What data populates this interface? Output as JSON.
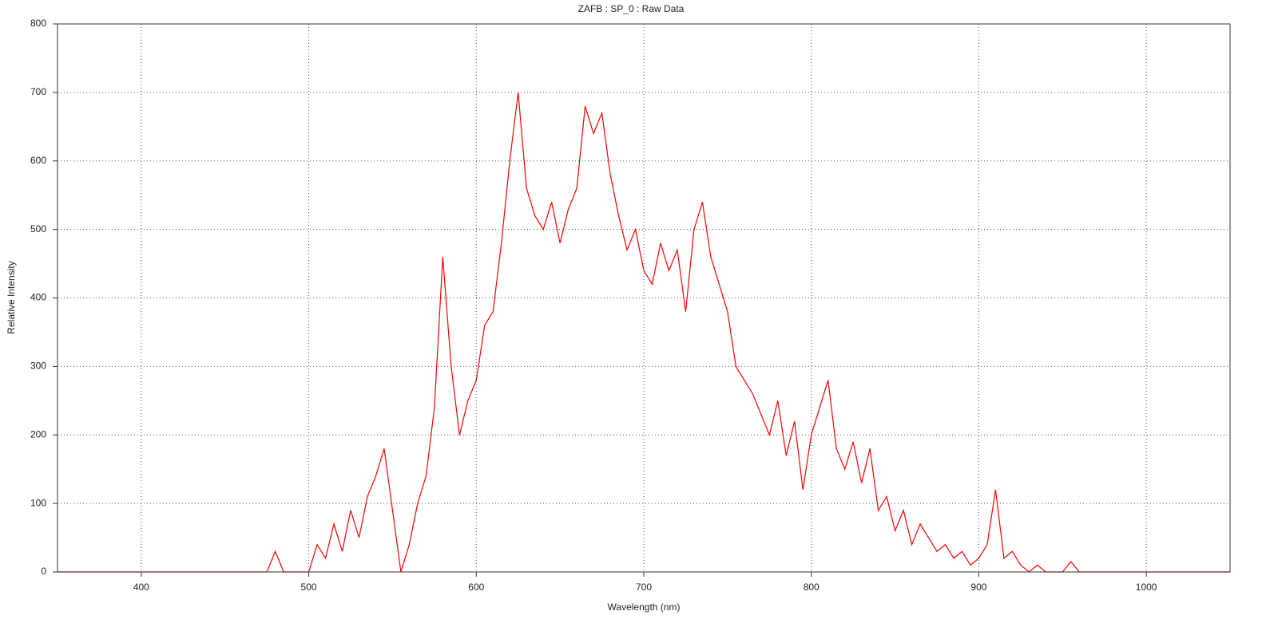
{
  "chart_data": {
    "type": "line",
    "title": "ZAFB : SP_0 : Raw Data",
    "x_label": "Wavelength (nm)",
    "y_label": "Relative Intensity",
    "x": [
      350,
      355,
      360,
      365,
      370,
      375,
      380,
      385,
      390,
      395,
      400,
      405,
      410,
      415,
      420,
      425,
      430,
      435,
      440,
      445,
      450,
      455,
      460,
      465,
      470,
      475,
      480,
      485,
      490,
      495,
      500,
      505,
      510,
      515,
      520,
      525,
      530,
      535,
      540,
      545,
      550,
      555,
      560,
      565,
      570,
      575,
      580,
      585,
      590,
      595,
      600,
      605,
      610,
      615,
      620,
      625,
      630,
      635,
      640,
      645,
      650,
      655,
      660,
      665,
      670,
      675,
      680,
      685,
      690,
      695,
      700,
      705,
      710,
      715,
      720,
      725,
      730,
      735,
      740,
      745,
      750,
      755,
      760,
      765,
      770,
      775,
      780,
      785,
      790,
      795,
      800,
      805,
      810,
      815,
      820,
      825,
      830,
      835,
      840,
      845,
      850,
      855,
      860,
      865,
      870,
      875,
      880,
      885,
      890,
      895,
      900,
      905,
      910,
      915,
      920,
      925,
      930,
      935,
      940,
      945,
      950,
      955,
      960,
      965,
      970,
      975,
      980,
      985,
      990,
      995,
      1000,
      1005,
      1010,
      1015,
      1020,
      1025,
      1030,
      1035,
      1040,
      1045,
      1050
    ],
    "series": [
      {
        "name": "Raw Data",
        "color": "#ff0000",
        "values": [
          0,
          0,
          0,
          0,
          0,
          0,
          0,
          0,
          0,
          0,
          0,
          0,
          0,
          0,
          0,
          0,
          0,
          0,
          0,
          0,
          0,
          0,
          0,
          0,
          0,
          0,
          30,
          0,
          0,
          0,
          0,
          40,
          20,
          70,
          30,
          90,
          50,
          110,
          140,
          180,
          90,
          0,
          40,
          100,
          140,
          240,
          460,
          300,
          200,
          250,
          280,
          360,
          380,
          480,
          600,
          700,
          560,
          520,
          500,
          540,
          480,
          530,
          560,
          680,
          640,
          670,
          580,
          520,
          470,
          500,
          440,
          420,
          480,
          440,
          470,
          380,
          500,
          540,
          460,
          420,
          380,
          300,
          280,
          260,
          230,
          200,
          250,
          170,
          220,
          120,
          200,
          240,
          280,
          180,
          150,
          190,
          130,
          180,
          90,
          110,
          60,
          90,
          40,
          70,
          50,
          30,
          40,
          20,
          30,
          10,
          20,
          40,
          120,
          20,
          30,
          10,
          0,
          10,
          0,
          0,
          0,
          15,
          0,
          0,
          0,
          0,
          0,
          0,
          0,
          0,
          0,
          0,
          0,
          0,
          0,
          0,
          0,
          0,
          0,
          0,
          0
        ]
      }
    ],
    "xlim": [
      350,
      1050
    ],
    "ylim": [
      0,
      800
    ],
    "xticks": [
      400,
      500,
      600,
      700,
      800,
      900,
      1000
    ],
    "yticks": [
      0,
      100,
      200,
      300,
      400,
      500,
      600,
      700,
      800
    ],
    "grid": true
  }
}
